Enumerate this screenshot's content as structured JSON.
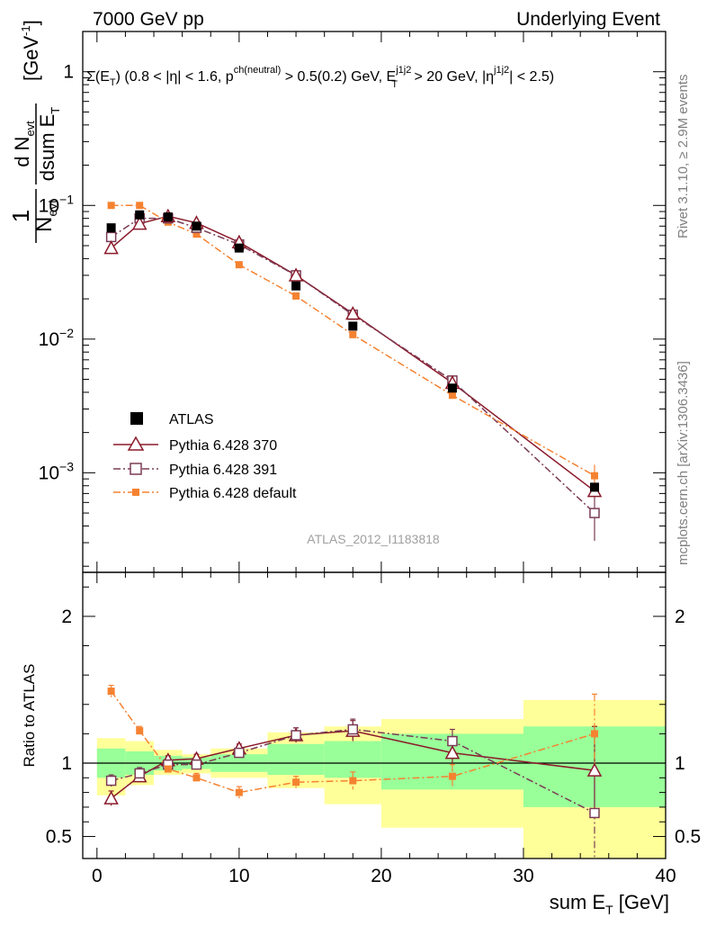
{
  "header": {
    "left": "7000 GeV pp",
    "right": "Underlying Event"
  },
  "cut_label": {
    "a": "Σ(E",
    "a_sub": "T",
    "b": ") (0.8 < |η| < 1.6, p",
    "b_sup": "ch(neutral)",
    "c": " > 0.5(0.2) GeV, E",
    "c_sup": "j1j2",
    "c_sub": "T",
    "d": " > 20 GeV, |η",
    "d_sup": "j1j2",
    "e": "| < 2.5)"
  },
  "ylabel_top": {
    "one": "1",
    "n_evt": "N",
    "n_evt_sub": "evt",
    "dn": "d N",
    "dn_sub": "evt",
    "dsum": "dsum E",
    "dsum_sub": "T",
    "unit": "[GeV",
    "unit_sup": "-1",
    "unit_close": "]"
  },
  "ylabel_bottom": "Ratio to ATLAS",
  "xlabel": {
    "main": "sum E",
    "sub": "T",
    "unit": " [GeV]"
  },
  "side_labels": {
    "rivet": "Rivet 3.1.10, ≥ 2.9M events",
    "mcplots": "mcplots.cern.ch [arXiv:1306.3436]"
  },
  "analysis_tag": "ATLAS_2012_I1183818",
  "legend": [
    "ATLAS",
    "Pythia 6.428 370",
    "Pythia 6.428 391",
    "Pythia 6.428 default"
  ],
  "ticks": {
    "x": [
      "0",
      "10",
      "20",
      "30",
      "40"
    ],
    "y_top": [
      "1",
      "10",
      "10",
      "10"
    ],
    "y_top_exp": [
      "",
      "−1",
      "−2",
      "−3"
    ],
    "y_bottom": [
      "2",
      "1",
      "0.5"
    ]
  },
  "colors": {
    "atlas": "#000000",
    "p370": "#8b1a2b",
    "p391": "#7a3b55",
    "pdefault": "#f58230",
    "band_inner": "#99ff99",
    "band_outer": "#ffff99"
  },
  "chart_data": [
    {
      "type": "scatter",
      "title": "",
      "xlabel": "sum E_T [GeV]",
      "ylabel": "1/N_evt dN_evt/dsumE_T [GeV^-1]",
      "xlim": [
        -1,
        40
      ],
      "ylim": [
        0.00018,
        2.0
      ],
      "yscale": "log",
      "x": [
        1,
        3,
        5,
        7,
        10,
        14,
        18,
        25,
        35
      ],
      "series": [
        {
          "name": "ATLAS",
          "marker": "square-filled",
          "values": [
            0.068,
            0.085,
            0.082,
            0.07,
            0.048,
            0.025,
            0.0125,
            0.0043,
            0.00078
          ]
        },
        {
          "name": "Pythia 6.428 370",
          "marker": "triangle-open",
          "line": "solid",
          "values": [
            0.048,
            0.073,
            0.083,
            0.074,
            0.053,
            0.03,
            0.0155,
            0.0047,
            0.00073
          ]
        },
        {
          "name": "Pythia 6.428 391",
          "marker": "square-open",
          "line": "dashdot",
          "values": [
            0.058,
            0.08,
            0.08,
            0.068,
            0.051,
            0.03,
            0.0152,
            0.0049,
            0.0005
          ]
        },
        {
          "name": "Pythia 6.428 default",
          "marker": "square-filled-small",
          "line": "dashdot",
          "values": [
            0.1,
            0.1,
            0.075,
            0.061,
            0.036,
            0.021,
            0.0108,
            0.0038,
            0.00095
          ]
        }
      ]
    },
    {
      "type": "scatter",
      "title": "",
      "xlabel": "sum E_T [GeV]",
      "ylabel": "Ratio to ATLAS",
      "xlim": [
        -1,
        40
      ],
      "ylim": [
        0.35,
        2.3
      ],
      "bins": [
        [
          0,
          2
        ],
        [
          2,
          4
        ],
        [
          4,
          6
        ],
        [
          6,
          8
        ],
        [
          8,
          12
        ],
        [
          12,
          16
        ],
        [
          16,
          20
        ],
        [
          20,
          30
        ],
        [
          30,
          40
        ]
      ],
      "band_inner": [
        [
          0.9,
          1.1
        ],
        [
          0.92,
          1.08
        ],
        [
          0.95,
          1.05
        ],
        [
          0.96,
          1.04
        ],
        [
          0.94,
          1.06
        ],
        [
          0.92,
          1.13
        ],
        [
          0.9,
          1.15
        ],
        [
          0.82,
          1.2
        ],
        [
          0.7,
          1.25
        ]
      ],
      "band_outer": [
        [
          0.78,
          1.17
        ],
        [
          0.85,
          1.15
        ],
        [
          0.92,
          1.09
        ],
        [
          0.93,
          1.06
        ],
        [
          0.9,
          1.1
        ],
        [
          0.83,
          1.21
        ],
        [
          0.72,
          1.25
        ],
        [
          0.56,
          1.3
        ],
        [
          0.3,
          1.43
        ]
      ],
      "x": [
        1,
        3,
        5,
        7,
        10,
        14,
        18,
        25,
        35
      ],
      "series": [
        {
          "name": "Pythia 6.428 370",
          "values": [
            0.76,
            0.91,
            1.02,
            1.03,
            1.1,
            1.19,
            1.22,
            1.07,
            0.95
          ],
          "errors": [
            0.05,
            0.04,
            0.03,
            0.03,
            0.03,
            0.05,
            0.07,
            0.08,
            0.3
          ]
        },
        {
          "name": "Pythia 6.428 391",
          "values": [
            0.88,
            0.93,
            0.99,
            0.99,
            1.07,
            1.19,
            1.23,
            1.15,
            0.66
          ],
          "errors": [
            0.04,
            0.04,
            0.03,
            0.03,
            0.03,
            0.05,
            0.07,
            0.08,
            0.3
          ]
        },
        {
          "name": "Pythia 6.428 default",
          "values": [
            1.49,
            1.22,
            0.96,
            0.9,
            0.8,
            0.87,
            0.88,
            0.91,
            1.2
          ],
          "errors": [
            0.04,
            0.03,
            0.03,
            0.03,
            0.04,
            0.04,
            0.06,
            0.08,
            0.27
          ]
        }
      ]
    }
  ]
}
